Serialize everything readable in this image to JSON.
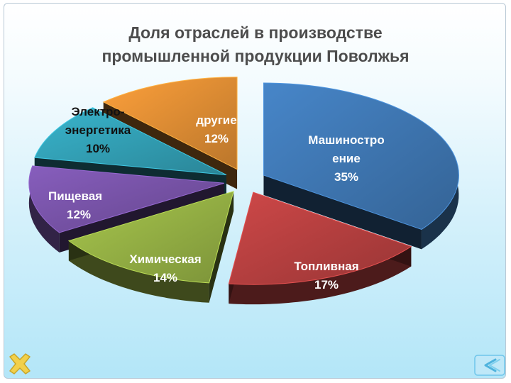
{
  "title": {
    "line1": "Доля отраслей в производстве",
    "line2": "промышленной продукции Поволжья"
  },
  "chart_data": {
    "type": "pie",
    "title": "Доля отраслей в производстве промышленной продукции Поволжья",
    "slices": [
      {
        "name": "Машиностроение",
        "label_lines": [
          "Машиностро",
          "ение"
        ],
        "value": 35,
        "value_label": "35%",
        "color": "#3a6ea5",
        "exploded": true
      },
      {
        "name": "Топливная",
        "label_lines": [
          "Топливная"
        ],
        "value": 17,
        "value_label": "17%",
        "color": "#a93b3b",
        "exploded": true
      },
      {
        "name": "Химическая",
        "label_lines": [
          "Химическая"
        ],
        "value": 14,
        "value_label": "14%",
        "color": "#8aa33f",
        "exploded": true
      },
      {
        "name": "Пищевая",
        "label_lines": [
          "Пищевая"
        ],
        "value": 12,
        "value_label": "12%",
        "color": "#6f4d9b",
        "exploded": true
      },
      {
        "name": "Электроэнергетика",
        "label_lines": [
          "Электро-",
          "энергетика"
        ],
        "value": 10,
        "value_label": "10%",
        "color": "#2f94a8",
        "exploded": true
      },
      {
        "name": "другие",
        "label_lines": [
          "другие"
        ],
        "value": 12,
        "value_label": "12%",
        "color": "#cf8330",
        "exploded": true
      }
    ],
    "style": "3d-exploded",
    "legend": "none"
  },
  "nav": {
    "close_icon": "close-x-icon",
    "back_icon": "back-arrow-icon",
    "close_color": "#f2d04a",
    "back_color": "#6fc6ea"
  }
}
